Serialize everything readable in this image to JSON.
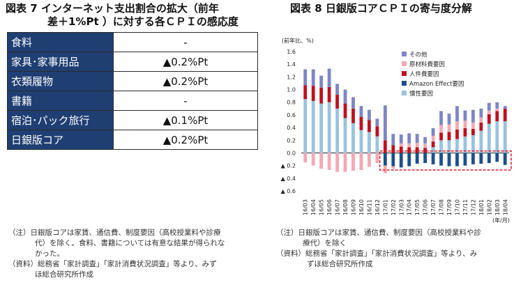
{
  "left_panel": {
    "title_line1": "図表 7 インターネット支出割合の拡大（前年",
    "title_line2": "差＋1%Pt ）に対する各ＣＰＩの感応度",
    "rows": [
      {
        "item": "食料",
        "value": "-"
      },
      {
        "item": "家具･家事用品",
        "value": "▲0.2%Pt"
      },
      {
        "item": "衣類履物",
        "value": "▲0.2%Pt"
      },
      {
        "item": "書籍",
        "value": "-"
      },
      {
        "item": "宿泊･パック旅行",
        "value": "▲0.1%Pt"
      },
      {
        "item": "日銀版コア",
        "value": "▲0.2%Pt"
      }
    ],
    "note_lines": [
      "（注）日銀版コアは家賃、通信費、制度要因（高校授業料や診療",
      "代）を除く。食料、書籍については有意な結果が得られな",
      "かった。"
    ],
    "source_lines": [
      "（資料）総務省「家計調査」「家計消費状況調査」等より、みず",
      "ほ総合研究所作成"
    ]
  },
  "right_panel": {
    "title": "図表 8 日銀版コアＣＰＩの寄与度分解",
    "note_lines": [
      "（注）日銀版コアは家賃、通信費、制度要因（高校授業料や診",
      "療代）を除く"
    ],
    "source_lines": [
      "（資料）総務省「家計調査」「家計消費状況調査」等より、み",
      "ずほ総合研究所作成"
    ]
  },
  "chart_data": {
    "type": "bar",
    "stacked": true,
    "ylabel": "(前年比、%)",
    "xlabel": "(年/月)",
    "ylim": [
      -0.6,
      1.6
    ],
    "yticks": [
      1.6,
      1.4,
      1.2,
      1.0,
      0.8,
      0.6,
      0.4,
      0.2,
      0.0,
      -0.2,
      -0.4,
      -0.6
    ],
    "ytick_labels": [
      "1.6",
      "1.4",
      "1.2",
      "1.0",
      "0.8",
      "0.6",
      "0.4",
      "0.2",
      "0.0",
      "▲ 0.2",
      "▲ 0.4",
      "▲ 0.6"
    ],
    "legend_position": "top-right",
    "categories": [
      "16/03",
      "16/04",
      "16/05",
      "16/06",
      "16/07",
      "16/08",
      "16/09",
      "16/10",
      "16/11",
      "16/12",
      "17/01",
      "17/02",
      "17/03",
      "17/04",
      "17/05",
      "17/06",
      "17/07",
      "17/08",
      "17/09",
      "17/10",
      "17/11",
      "17/12",
      "18/01",
      "18/02",
      "18/03",
      "18/04"
    ],
    "series": [
      {
        "name": "慣性要因",
        "color": "#9ac3dd",
        "values": [
          0.85,
          0.82,
          0.78,
          0.8,
          0.7,
          0.55,
          0.47,
          0.36,
          0.33,
          0.26,
          0.0,
          0.0,
          0.0,
          0.0,
          0.0,
          0.0,
          0.09,
          0.2,
          0.2,
          0.22,
          0.26,
          0.28,
          0.35,
          0.46,
          0.5,
          0.5
        ]
      },
      {
        "name": "Amazon Effect要因",
        "color": "#1f4e8c",
        "values": [
          0,
          0,
          0,
          0,
          0,
          0,
          0,
          0,
          0,
          0,
          -0.2,
          -0.21,
          -0.23,
          -0.21,
          -0.17,
          -0.16,
          -0.18,
          -0.2,
          -0.21,
          -0.21,
          -0.2,
          -0.18,
          -0.17,
          -0.16,
          -0.14,
          -0.19
        ]
      },
      {
        "name": "人件費要因",
        "color": "#c0111f",
        "values": [
          0.22,
          0.24,
          0.25,
          0.24,
          0.22,
          0.23,
          0.23,
          0.21,
          0.19,
          0.16,
          0.2,
          0.12,
          0.1,
          0.09,
          0.09,
          0.08,
          0.09,
          0.12,
          0.13,
          0.15,
          0.13,
          0.1,
          0.13,
          0.15,
          0.16,
          0.2
        ]
      },
      {
        "name": "原材料費要因",
        "color": "#f4a9b4",
        "values": [
          -0.15,
          -0.2,
          -0.25,
          -0.27,
          -0.3,
          -0.3,
          -0.28,
          -0.27,
          -0.22,
          -0.16,
          -0.12,
          -0.04,
          0.05,
          0.06,
          0.07,
          0.07,
          0.09,
          0.12,
          0.12,
          0.13,
          0.12,
          0.1,
          0.08,
          0.06,
          0.04,
          0.0
        ]
      },
      {
        "name": "その他",
        "color": "#7d86c6",
        "values": [
          0.25,
          0.26,
          0.19,
          0.29,
          0.17,
          0.22,
          0.18,
          0.17,
          0.16,
          0.12,
          0.55,
          0.18,
          0.14,
          0.16,
          0.14,
          0.1,
          0.12,
          0.22,
          0.17,
          0.24,
          0.16,
          0.2,
          0.14,
          0.12,
          0.1,
          0.04
        ]
      }
    ],
    "legend_order": [
      "その他",
      "原材料費要因",
      "人件費要因",
      "Amazon Effect要因",
      "慣性要因"
    ],
    "highlight": {
      "from": "17/01",
      "to": "18/04",
      "style": "red-dashed-box"
    }
  }
}
